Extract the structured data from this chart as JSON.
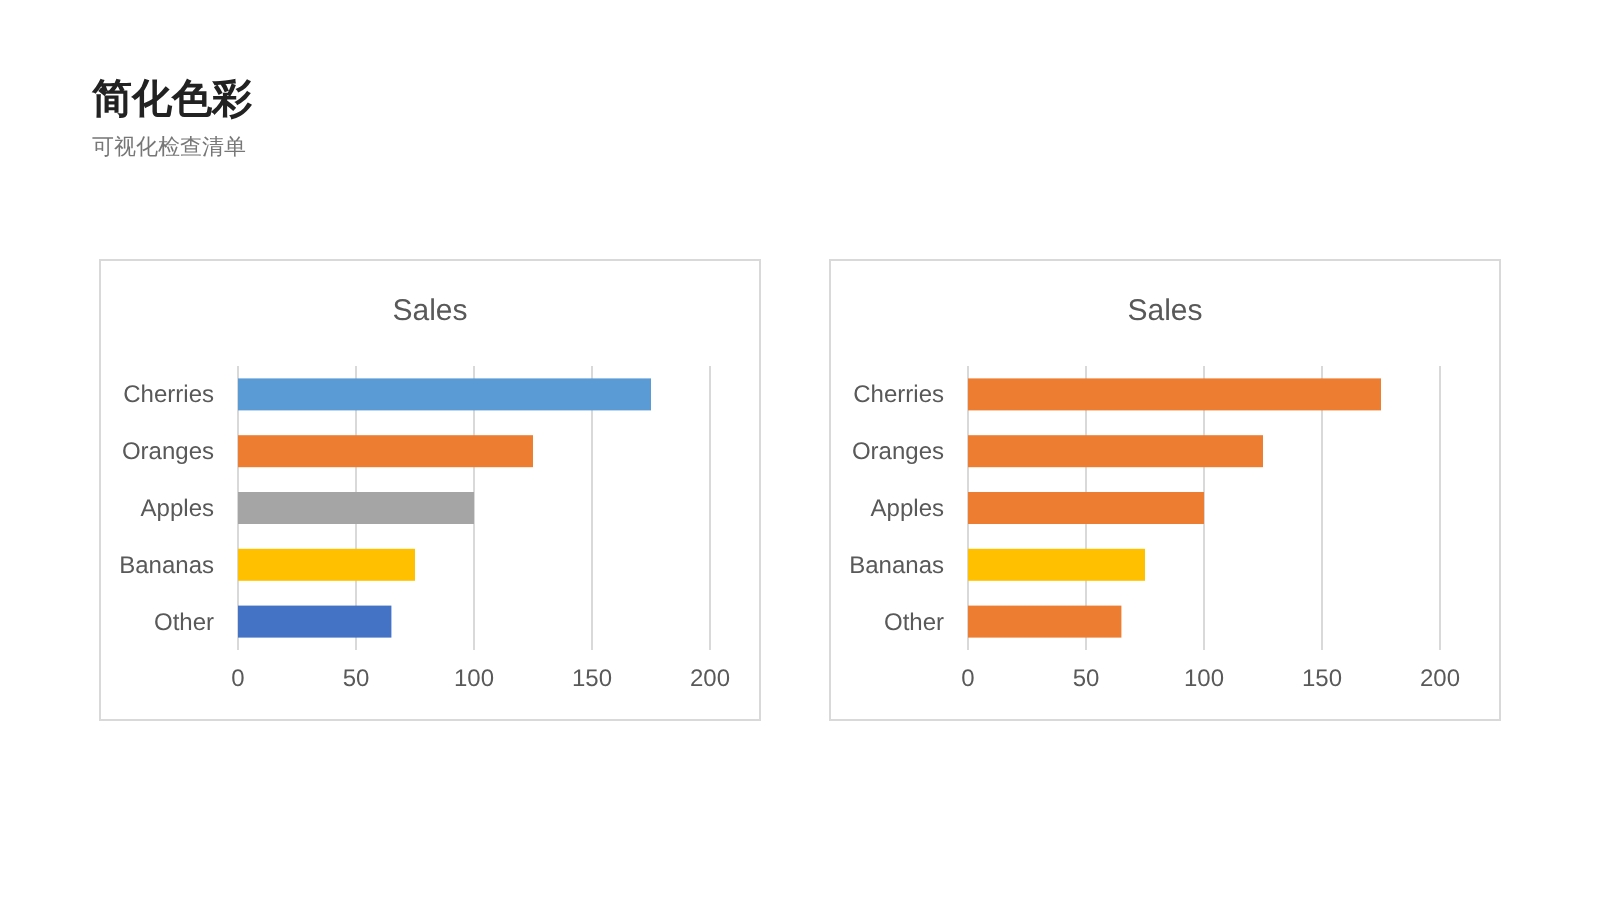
{
  "chart_data": [
    {
      "type": "other",
      "title": "简化色彩",
      "subtitle": "可视化检查清单"
    },
    {
      "type": "bar",
      "orientation": "horizontal",
      "title": "Sales",
      "categories": [
        "Cherries",
        "Oranges",
        "Apples",
        "Bananas",
        "Other"
      ],
      "values": [
        175,
        125,
        100,
        75,
        65
      ],
      "colors": [
        "#5b9bd5",
        "#ed7d31",
        "#a5a5a5",
        "#ffc000",
        "#4472c4"
      ],
      "xlim": [
        0,
        200
      ],
      "xticks": [
        0,
        50,
        100,
        150,
        200
      ],
      "grid": "x"
    },
    {
      "type": "bar",
      "orientation": "horizontal",
      "title": "Sales",
      "categories": [
        "Cherries",
        "Oranges",
        "Apples",
        "Bananas",
        "Other"
      ],
      "values": [
        175,
        125,
        100,
        75,
        65
      ],
      "colors": [
        "#ed7d31",
        "#ed7d31",
        "#ed7d31",
        "#ffc000",
        "#ed7d31"
      ],
      "xlim": [
        0,
        200
      ],
      "xticks": [
        0,
        50,
        100,
        150,
        200
      ],
      "grid": "x"
    }
  ]
}
